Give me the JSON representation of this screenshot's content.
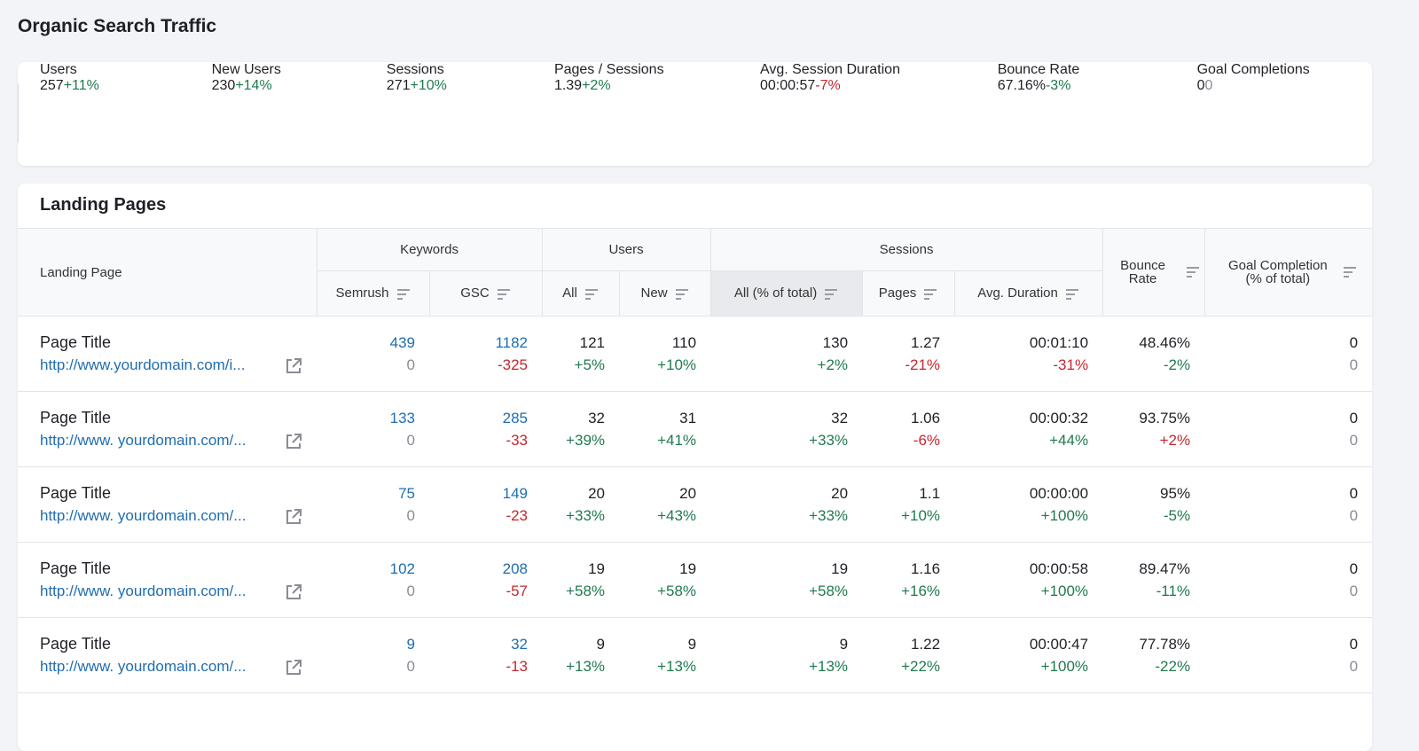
{
  "header": {
    "title": "Organic Search Traffic"
  },
  "metrics": [
    {
      "label": "Users",
      "value": "257",
      "change": "+11%"
    },
    {
      "label": "New Users",
      "value": "230",
      "change": "+14%"
    },
    {
      "label": "Sessions",
      "value": "271",
      "change": "+10%"
    },
    {
      "label": "Pages / Sessions",
      "value": "1.39",
      "change": "+2%"
    },
    {
      "label": "Avg. Session Duration",
      "value": "00:00:57",
      "change": "-7%"
    },
    {
      "label": "Bounce Rate",
      "value": "67.16%",
      "change": "-3%"
    },
    {
      "label": "Goal Completions",
      "value": "0",
      "change": "0"
    }
  ],
  "table": {
    "title": "Landing Pages",
    "columns": {
      "landing_page": "Landing Page",
      "groups": [
        {
          "label": "Keywords",
          "columns": [
            "Semrush",
            "GSC"
          ]
        },
        {
          "label": "Users",
          "columns": [
            "All",
            "New"
          ]
        },
        {
          "label": "Sessions",
          "columns": [
            "All (% of total)",
            "Pages",
            "Avg. Duration"
          ]
        }
      ],
      "bounce_rate": "Bounce Rate",
      "goal_completion": "Goal Completion (% of total)"
    },
    "rows": [
      {
        "title": "Page Title",
        "url": "http://www.yourdomain.com/i...",
        "cells": [
          [
            "439",
            "0"
          ],
          [
            "1182",
            "-325"
          ],
          [
            "121",
            "+5%"
          ],
          [
            "110",
            "+10%"
          ],
          [
            "130",
            "+2%"
          ],
          [
            "1.27",
            "-21%"
          ],
          [
            "00:01:10",
            "-31%"
          ],
          [
            "48.46%",
            "-2%"
          ],
          [
            "0",
            "0"
          ]
        ]
      },
      {
        "title": "Page Title",
        "url": "http://www. yourdomain.com/...",
        "cells": [
          [
            "133",
            "0"
          ],
          [
            "285",
            "-33"
          ],
          [
            "32",
            "+39%"
          ],
          [
            "31",
            "+41%"
          ],
          [
            "32",
            "+33%"
          ],
          [
            "1.06",
            "-6%"
          ],
          [
            "00:00:32",
            "+44%"
          ],
          [
            "93.75%",
            "+2%"
          ],
          [
            "0",
            "0"
          ]
        ]
      },
      {
        "title": "Page Title",
        "url": "http://www. yourdomain.com/...",
        "cells": [
          [
            "75",
            "0"
          ],
          [
            "149",
            "-23"
          ],
          [
            "20",
            "+33%"
          ],
          [
            "20",
            "+43%"
          ],
          [
            "20",
            "+33%"
          ],
          [
            "1.1",
            "+10%"
          ],
          [
            "00:00:00",
            "+100%"
          ],
          [
            "95%",
            "-5%"
          ],
          [
            "0",
            "0"
          ]
        ]
      },
      {
        "title": "Page Title",
        "url": "http://www. yourdomain.com/...",
        "cells": [
          [
            "102",
            "0"
          ],
          [
            "208",
            "-57"
          ],
          [
            "19",
            "+58%"
          ],
          [
            "19",
            "+58%"
          ],
          [
            "19",
            "+58%"
          ],
          [
            "1.16",
            "+16%"
          ],
          [
            "00:00:58",
            "+100%"
          ],
          [
            "89.47%",
            "-11%"
          ],
          [
            "0",
            "0"
          ]
        ]
      },
      {
        "title": "Page Title",
        "url": "http://www. yourdomain.com/...",
        "cells": [
          [
            "9",
            "0"
          ],
          [
            "32",
            "-13"
          ],
          [
            "9",
            "+13%"
          ],
          [
            "9",
            "+13%"
          ],
          [
            "9",
            "+13%"
          ],
          [
            "1.22",
            "+22%"
          ],
          [
            "00:00:47",
            "+100%"
          ],
          [
            "77.78%",
            "-22%"
          ],
          [
            "0",
            "0"
          ]
        ]
      }
    ]
  }
}
